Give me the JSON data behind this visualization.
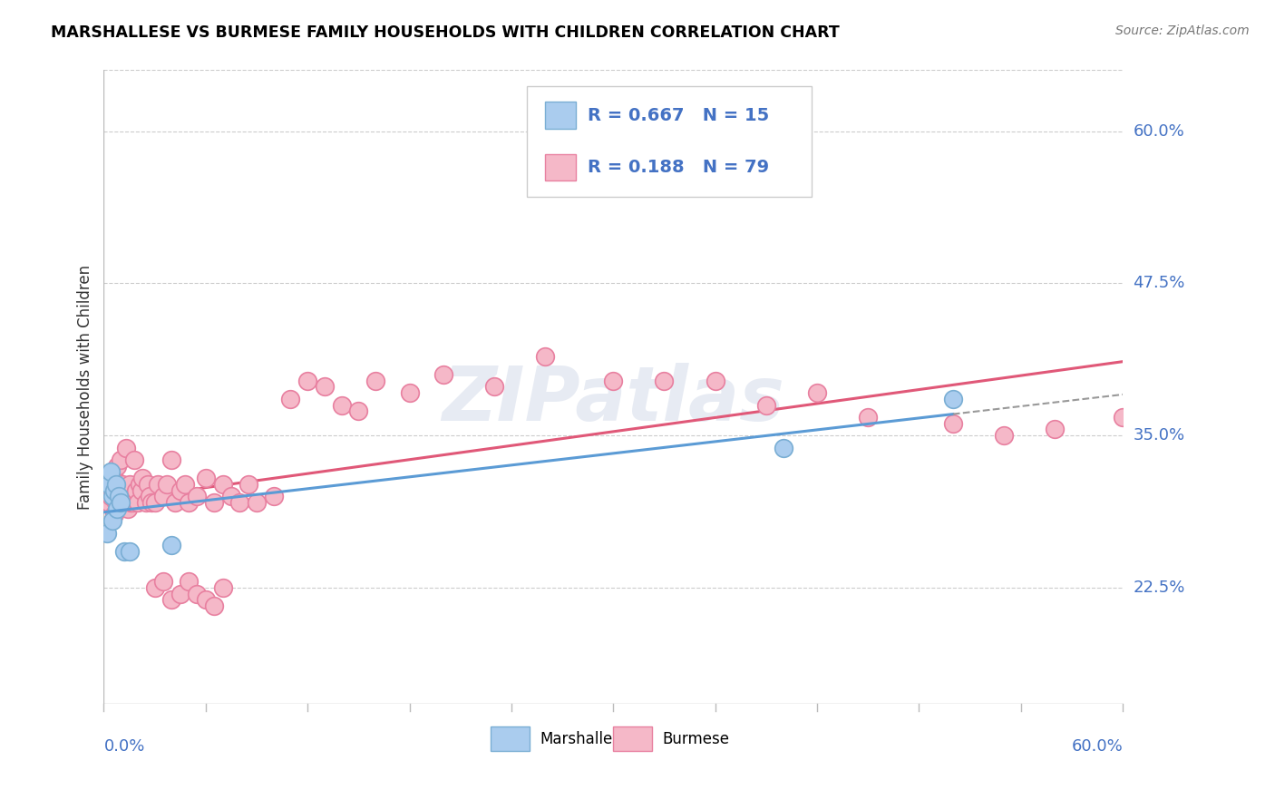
{
  "title": "MARSHALLESE VS BURMESE FAMILY HOUSEHOLDS WITH CHILDREN CORRELATION CHART",
  "source": "Source: ZipAtlas.com",
  "ylabel": "Family Households with Children",
  "yticks": [
    0.225,
    0.35,
    0.475,
    0.6
  ],
  "ytick_labels": [
    "22.5%",
    "35.0%",
    "47.5%",
    "60.0%"
  ],
  "xlim": [
    0.0,
    0.6
  ],
  "ylim": [
    0.13,
    0.65
  ],
  "marshallese_color": "#aaccee",
  "marshallese_edge": "#7aaed4",
  "burmese_color": "#f5b8c8",
  "burmese_edge": "#e880a0",
  "trend_blue": "#5b9bd5",
  "trend_pink": "#e05878",
  "legend_blue": "#4472c4",
  "legend_R_marsh": "0.667",
  "legend_N_marsh": "15",
  "legend_R_burm": "0.188",
  "legend_N_burm": "79",
  "marshallese_x": [
    0.002,
    0.003,
    0.004,
    0.005,
    0.005,
    0.006,
    0.007,
    0.008,
    0.009,
    0.01,
    0.012,
    0.015,
    0.04,
    0.4,
    0.5
  ],
  "marshallese_y": [
    0.27,
    0.31,
    0.32,
    0.3,
    0.28,
    0.305,
    0.31,
    0.29,
    0.3,
    0.295,
    0.255,
    0.255,
    0.26,
    0.34,
    0.38
  ],
  "burmese_x": [
    0.002,
    0.003,
    0.003,
    0.004,
    0.005,
    0.005,
    0.006,
    0.006,
    0.007,
    0.007,
    0.008,
    0.008,
    0.009,
    0.01,
    0.01,
    0.011,
    0.012,
    0.013,
    0.014,
    0.015,
    0.016,
    0.017,
    0.018,
    0.019,
    0.02,
    0.021,
    0.022,
    0.023,
    0.025,
    0.026,
    0.027,
    0.028,
    0.03,
    0.032,
    0.035,
    0.037,
    0.04,
    0.042,
    0.045,
    0.048,
    0.05,
    0.055,
    0.06,
    0.065,
    0.07,
    0.075,
    0.08,
    0.085,
    0.09,
    0.1,
    0.11,
    0.12,
    0.13,
    0.14,
    0.15,
    0.16,
    0.18,
    0.2,
    0.23,
    0.26,
    0.3,
    0.33,
    0.36,
    0.39,
    0.42,
    0.45,
    0.5,
    0.53,
    0.56,
    0.6,
    0.03,
    0.035,
    0.04,
    0.045,
    0.05,
    0.055,
    0.06,
    0.065,
    0.07
  ],
  "burmese_y": [
    0.31,
    0.295,
    0.31,
    0.3,
    0.305,
    0.315,
    0.285,
    0.315,
    0.31,
    0.295,
    0.325,
    0.305,
    0.31,
    0.33,
    0.295,
    0.31,
    0.3,
    0.34,
    0.29,
    0.31,
    0.295,
    0.295,
    0.33,
    0.305,
    0.295,
    0.31,
    0.305,
    0.315,
    0.295,
    0.31,
    0.3,
    0.295,
    0.295,
    0.31,
    0.3,
    0.31,
    0.33,
    0.295,
    0.305,
    0.31,
    0.295,
    0.3,
    0.315,
    0.295,
    0.31,
    0.3,
    0.295,
    0.31,
    0.295,
    0.3,
    0.38,
    0.395,
    0.39,
    0.375,
    0.37,
    0.395,
    0.385,
    0.4,
    0.39,
    0.415,
    0.395,
    0.395,
    0.395,
    0.375,
    0.385,
    0.365,
    0.36,
    0.35,
    0.355,
    0.365,
    0.225,
    0.23,
    0.215,
    0.22,
    0.23,
    0.22,
    0.215,
    0.21,
    0.225
  ]
}
